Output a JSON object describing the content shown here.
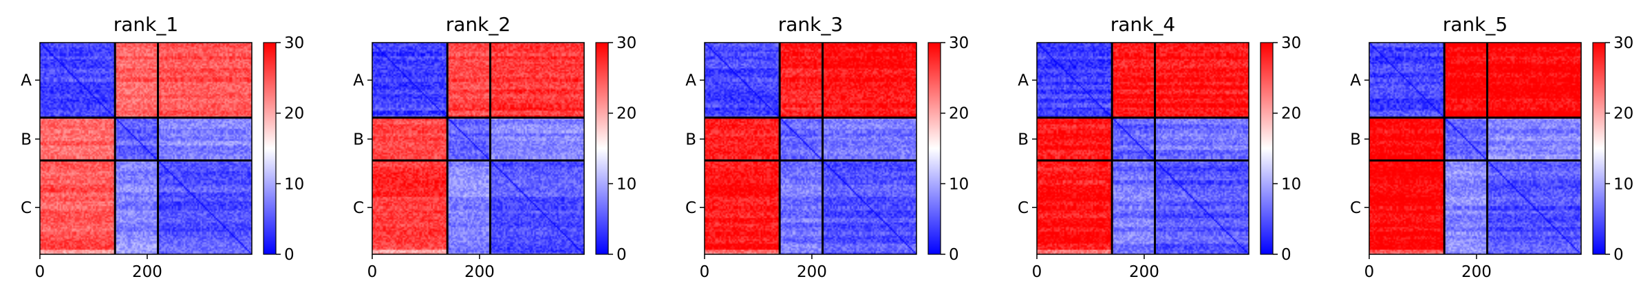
{
  "chart_data": {
    "type": "heatmap",
    "description_free": true,
    "colormap": "bwr",
    "colors": {
      "low": "#0000ff",
      "mid": "#ffffff",
      "high": "#ff0000",
      "separator": "#000000"
    },
    "color_range": [
      0,
      30
    ],
    "colorbar_ticks": [
      "0",
      "10",
      "20",
      "30"
    ],
    "x_ticks": [
      "0",
      "200"
    ],
    "x_tick_values": [
      0,
      200
    ],
    "x_range": [
      0,
      395
    ],
    "chain_labels": [
      "A",
      "B",
      "C"
    ],
    "chain_boundaries": [
      0,
      140,
      220,
      395
    ],
    "grid": false,
    "panels": [
      {
        "title": "rank_1",
        "block_means": [
          [
            4,
            24,
            25
          ],
          [
            24,
            6,
            8
          ],
          [
            25,
            8,
            5
          ]
        ]
      },
      {
        "title": "rank_2",
        "block_means": [
          [
            4,
            26,
            27
          ],
          [
            26,
            6,
            8
          ],
          [
            27,
            8,
            5
          ]
        ]
      },
      {
        "title": "rank_3",
        "block_means": [
          [
            4,
            28,
            29
          ],
          [
            28,
            6,
            7
          ],
          [
            29,
            7,
            5
          ]
        ]
      },
      {
        "title": "rank_4",
        "block_means": [
          [
            4,
            29,
            29
          ],
          [
            29,
            6,
            7
          ],
          [
            29,
            7,
            5
          ]
        ]
      },
      {
        "title": "rank_5",
        "block_means": [
          [
            4,
            30,
            30
          ],
          [
            30,
            6,
            8
          ],
          [
            30,
            8,
            5
          ]
        ]
      }
    ]
  }
}
